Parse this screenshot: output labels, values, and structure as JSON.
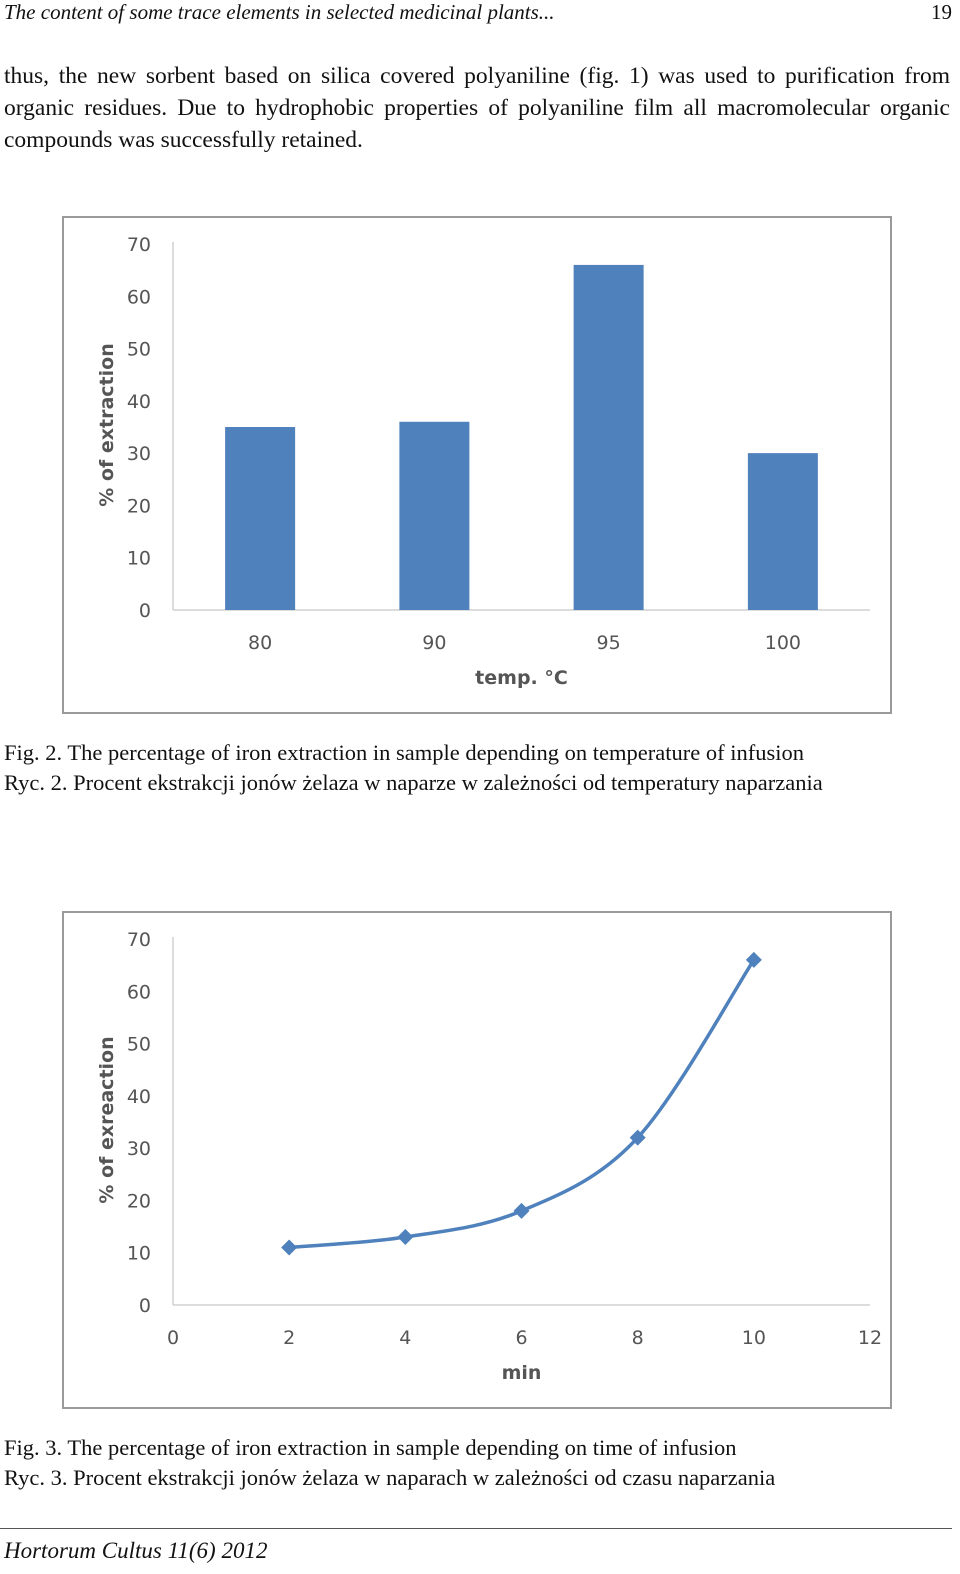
{
  "header": {
    "running_title": "The content of some trace elements in selected medicinal plants...",
    "page_number": "19"
  },
  "body_paragraph": "thus, the new sorbent based on silica covered polyaniline (fig. 1) was used to purification from organic residues. Due to hydrophobic properties of polyaniline film all macromolecular organic compounds was successfully retained.",
  "figures": [
    {
      "caption_en": "Fig. 2.  The percentage of iron extraction in sample depending on temperature of infusion",
      "caption_pl": "Ryc. 2. Procent ekstrakcji jonów żelaza w naparze w zależności od temperatury naparzania"
    },
    {
      "caption_en": "Fig. 3.  The percentage of iron extraction in sample depending on time of infusion",
      "caption_pl": "Ryc. 3. Procent ekstrakcji jonów żelaza w naparach w zależności od czasu naparzania"
    }
  ],
  "chart_data": [
    {
      "type": "bar",
      "categories": [
        "80",
        "90",
        "95",
        "100"
      ],
      "values": [
        35,
        36,
        66,
        30
      ],
      "xlabel": "temp. °C",
      "ylabel": "% of extraction",
      "ylim": [
        0,
        70
      ],
      "yticks": [
        0,
        10,
        20,
        30,
        40,
        50,
        60,
        70
      ],
      "grid": false,
      "bar_color": "#4f81bd"
    },
    {
      "type": "line",
      "x": [
        2,
        4,
        6,
        8,
        10
      ],
      "y": [
        11,
        13,
        18,
        32,
        66
      ],
      "xlabel": "min",
      "ylabel": "% of exreaction",
      "xlim": [
        0,
        12
      ],
      "xticks": [
        0,
        2,
        4,
        6,
        8,
        10,
        12
      ],
      "ylim": [
        0,
        70
      ],
      "yticks": [
        0,
        10,
        20,
        30,
        40,
        50,
        60,
        70
      ],
      "grid": false,
      "marker": "diamond",
      "line_color": "#4f81bd"
    }
  ],
  "footer": {
    "journal": "Hortorum Cultus 11(6) 2012"
  }
}
